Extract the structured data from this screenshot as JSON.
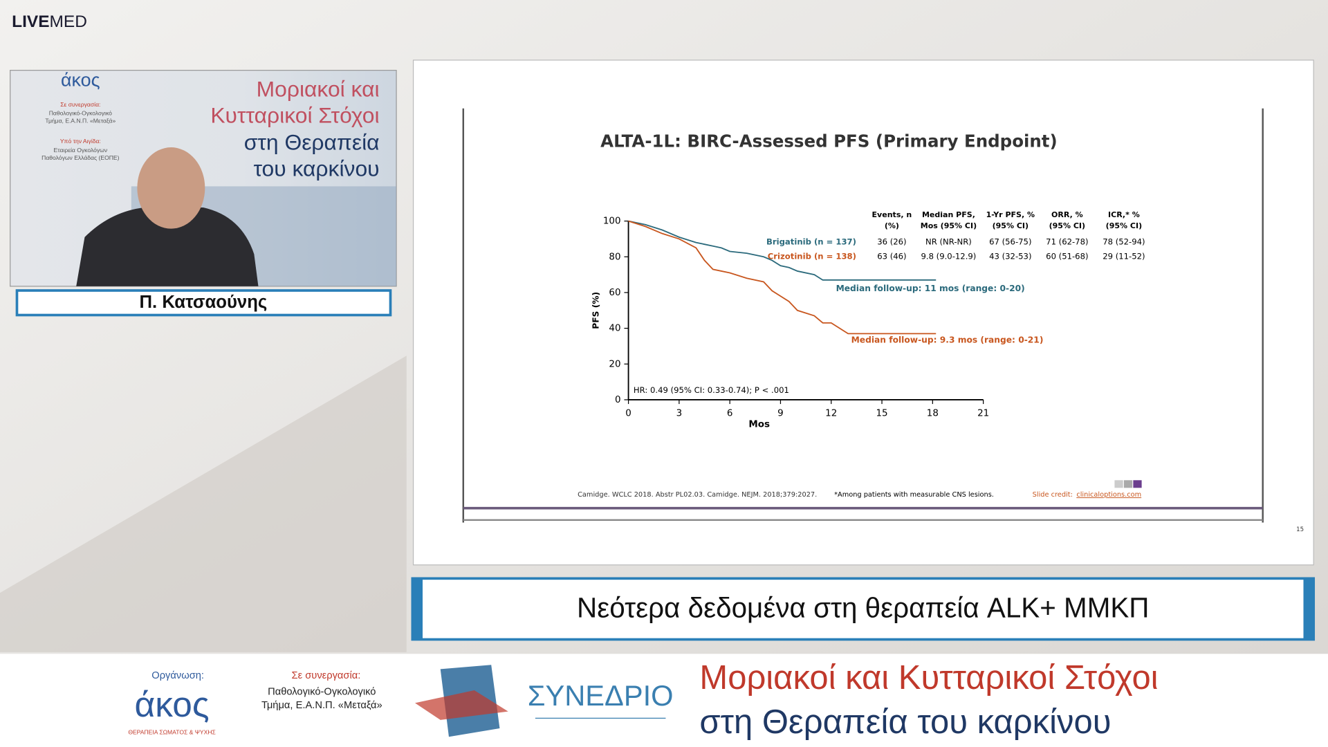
{
  "header": {
    "brand_bold": "LIVE",
    "brand_light": "MED"
  },
  "video": {
    "logo": "άκος",
    "backdrop_small": [
      "Σε συνεργασία:",
      "Παθολογικό-Ογκολογικό",
      "Τμήμα, Ε.Α.Ν.Π. «Μεταξά»",
      "Υπό την Αιγίδα:",
      "Εταιρεία Ογκολόγων",
      "Παθολόγων Ελλάδας (ΕΟΠΕ)"
    ],
    "backdrop_lines": [
      "Μοριακοί και",
      "Κυτταρικοί Στόχοι",
      "στη Θεραπεία",
      "του καρκίνου"
    ]
  },
  "speaker": {
    "name": "Π. Κατσαούνης"
  },
  "slide": {
    "title": "ALTA-1L: BIRC-Assessed PFS (Primary Endpoint)",
    "table": {
      "headers": [
        [
          "Events, n",
          "(%)"
        ],
        [
          "Median PFS,",
          "Mos (95% CI)"
        ],
        [
          "1-Yr PFS, %",
          "(95% CI)"
        ],
        [
          "ORR, %",
          "(95% CI)"
        ],
        [
          "ICR,* %",
          "(95% CI)"
        ]
      ],
      "rows": [
        [
          "36 (26)",
          "NR (NR-NR)",
          "67 (56-75)",
          "71 (62-78)",
          "78 (52-94)"
        ],
        [
          "63 (46)",
          "9.8 (9.0-12.9)",
          "43 (32-53)",
          "60 (51-68)",
          "29 (11-52)"
        ]
      ]
    },
    "footnotes": [
      "Camidge. WCLC 2018. Abstr PL02.03. Camidge. NEJM. 2018;379:2027.",
      "*Among patients with measurable CNS lesions."
    ],
    "credit_label": "Slide credit:",
    "credit_link": "clinicaloptions.com",
    "page_number": "15"
  },
  "chart_data": {
    "type": "line",
    "step": true,
    "xlabel": "Mos",
    "ylabel": "PFS (%)",
    "x": [
      0,
      1,
      2,
      3,
      4,
      4.5,
      5,
      5.5,
      6,
      7,
      8,
      8.5,
      9,
      9.5,
      10,
      11,
      11.5,
      12,
      12.5,
      13,
      15,
      18.2
    ],
    "series": [
      {
        "name": "Brigatinib (n = 137)",
        "color": "#2b6a7c",
        "values": [
          100,
          98,
          95,
          91,
          88,
          87,
          86,
          85,
          83,
          82,
          80,
          78,
          75,
          74,
          72,
          70,
          67,
          67,
          67,
          67,
          67,
          67
        ]
      },
      {
        "name": "Crizotinib (n = 138)",
        "color": "#c8561e",
        "values": [
          100,
          97,
          93,
          90,
          85,
          78,
          73,
          72,
          71,
          68,
          66,
          61,
          58,
          55,
          50,
          47,
          43,
          43,
          40,
          37,
          37,
          37
        ]
      }
    ],
    "annotations": [
      "Median follow-up: 11 mos (range: 0-20)",
      "Median follow-up: 9.3 mos (range: 0-21)",
      "HR: 0.49 (95% CI: 0.33-0.74); P < .001"
    ],
    "xlim": [
      0,
      21
    ],
    "xticks": [
      0,
      3,
      6,
      9,
      12,
      15,
      18,
      21
    ],
    "ylim": [
      0,
      100
    ],
    "yticks": [
      0,
      20,
      40,
      60,
      80,
      100
    ]
  },
  "topic": {
    "text": "Νεότερα δεδομένα στη θεραπεία ALK+ ΜΜΚΠ"
  },
  "footer": {
    "org_label": "Οργάνωση:",
    "org_logo": "άκος",
    "org_tagline": "ΘΕΡΑΠΕΙΑ ΣΩΜΑΤΟΣ & ΨΥΧΗΣ",
    "partner_label": "Σε συνεργασία:",
    "partner_lines": [
      "Παθολογικό-Ογκολογικό",
      "Τμήμα, Ε.Α.Ν.Π. «Μεταξά»"
    ],
    "congress": "ΣΥΝΕΔΡΙΟ",
    "title_lines": [
      "Μοριακοί και Κυτταρικοί Στόχοι",
      "στη Θεραπεία του καρκίνου"
    ]
  }
}
